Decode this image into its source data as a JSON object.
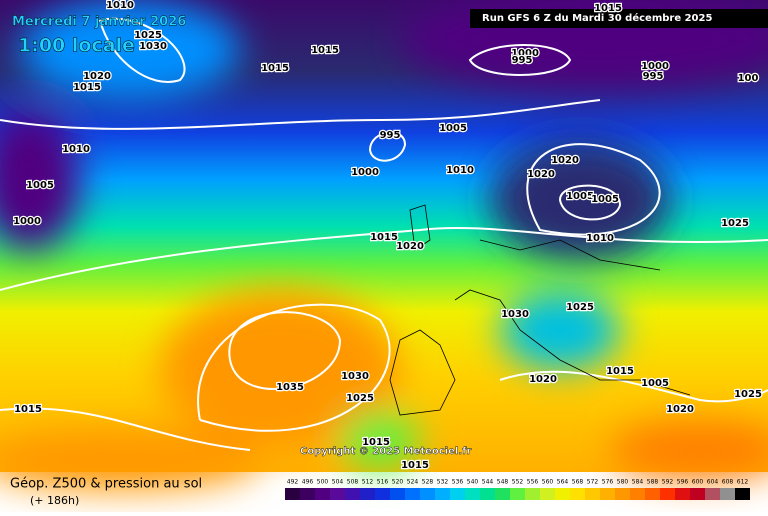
{
  "header": {
    "valid_date": "Mercredi 7 janvier 2026",
    "local_time": "1:00 locale",
    "run": "Run GFS 6 Z du Mardi 30 décembre 2025"
  },
  "map": {
    "copyright": "Copyright © 2025 Meteociel.fr",
    "isobar_labels": [
      "1010",
      "1025",
      "1030",
      "1015",
      "1015",
      "1020",
      "1015",
      "1010",
      "1005",
      "1000",
      "995",
      "1005",
      "1000",
      "1010",
      "1000",
      "995",
      "1015",
      "1000",
      "995",
      "100",
      "1020",
      "1020",
      "1005",
      "1005",
      "1010",
      "1025",
      "1015",
      "1020",
      "1025",
      "1030",
      "1015",
      "1005",
      "1020",
      "1020",
      "1025",
      "1035",
      "1030",
      "1025",
      "1015",
      "1015",
      "1015"
    ]
  },
  "footer": {
    "title": "Géop. Z500 & pression au sol",
    "lead": "(+ 186h)"
  },
  "scale": {
    "labels": [
      "492",
      "496",
      "500",
      "504",
      "508",
      "512",
      "516",
      "520",
      "524",
      "528",
      "532",
      "536",
      "540",
      "544",
      "548",
      "552",
      "556",
      "560",
      "564",
      "568",
      "572",
      "576",
      "580",
      "584",
      "588",
      "592",
      "596",
      "600",
      "604",
      "608",
      "612"
    ],
    "colors": [
      "#2a0040",
      "#3d0061",
      "#500080",
      "#5a0a9a",
      "#4010b0",
      "#2020c8",
      "#1030e0",
      "#0050f0",
      "#0070ff",
      "#0090ff",
      "#00b0ff",
      "#00d0f0",
      "#00e0c0",
      "#00e090",
      "#20e060",
      "#60f040",
      "#a0f030",
      "#d0f020",
      "#f0f000",
      "#ffe000",
      "#ffc800",
      "#ffb000",
      "#ff9800",
      "#ff8000",
      "#ff6000",
      "#ff3000",
      "#e01010",
      "#c00020",
      "#b05060",
      "#909090",
      "#000000"
    ]
  }
}
